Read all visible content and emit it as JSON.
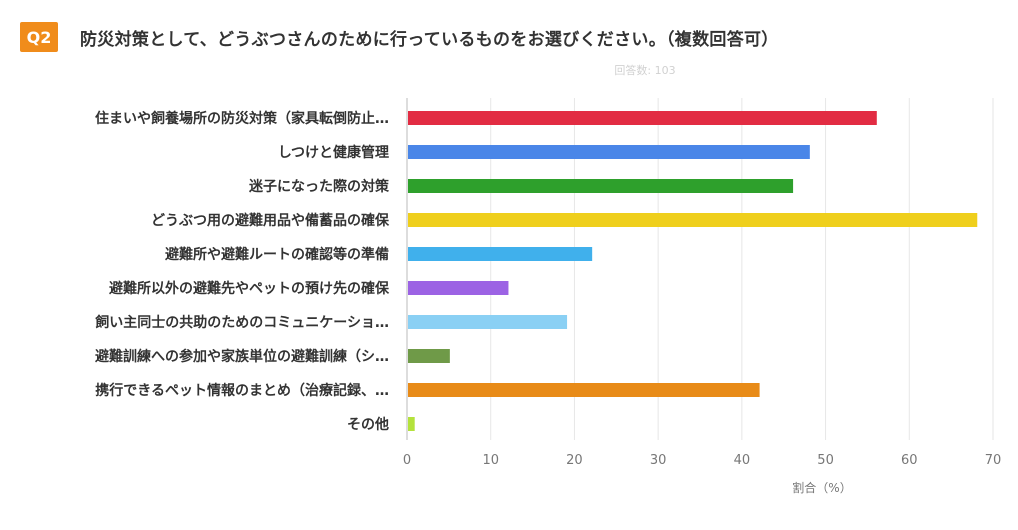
{
  "header": {
    "badge": "Q2",
    "question": "防災対策として、どうぶつさんのために行っているものをお選びください。（複数回答可）"
  },
  "chart_data": {
    "type": "bar",
    "orientation": "horizontal",
    "categories": [
      "住まいや飼養場所の防災対策（家具転倒防止…",
      "しつけと健康管理",
      "迷子になった際の対策",
      "どうぶつ用の避難用品や備蓄品の確保",
      "避難所や避難ルートの確認等の準備",
      "避難所以外の避難先やペットの預け先の確保",
      "飼い主同士の共助のためのコミュニケーショ…",
      "避難訓練への参加や家族単位の避難訓練（シ…",
      "携行できるペット情報のまとめ（治療記録、…",
      "その他"
    ],
    "values": [
      56,
      48,
      46,
      68,
      22,
      12,
      19,
      5,
      42,
      0.8
    ],
    "colors": [
      "#e22c43",
      "#4a86e8",
      "#2ea02c",
      "#efcf1c",
      "#40b0ec",
      "#9c63e4",
      "#8ad0f4",
      "#6f9a48",
      "#e88b18",
      "#b4e23c"
    ],
    "xlabel": "割合（%）",
    "ylabel": "",
    "xlim": [
      0,
      70
    ],
    "xticks": [
      0,
      10,
      20,
      30,
      40,
      50,
      60,
      70
    ],
    "grid": true,
    "subtitle": "回答数: 103"
  }
}
